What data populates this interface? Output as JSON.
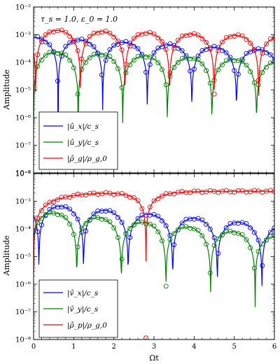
{
  "figure": {
    "xlabel": "Ωt",
    "ylabel_top": "Amplitude",
    "ylabel_bottom": "Amplitude"
  },
  "chart_data": [
    {
      "type": "line",
      "annotation": "τ_s = 1.0, ε_0 = 1.0",
      "xlim": [
        0,
        6
      ],
      "ylim": [
        1e-08,
        0.01
      ],
      "yscale": "log",
      "xticks": [
        "0",
        "1",
        "2",
        "3",
        "4",
        "5",
        "6"
      ],
      "yticks": [
        "10⁻⁸",
        "10⁻⁷",
        "10⁻⁶",
        "10⁻⁵",
        "10⁻⁴",
        "10⁻³",
        "10⁻²"
      ],
      "grid": false,
      "legend_position": "lower-left",
      "markers": "open circles (simulation) over solid lines (analytic)",
      "series": [
        {
          "name": "|û_x|/c_s",
          "color": "#0000ff",
          "amplitude": 0.0008,
          "decay": 0.18,
          "freq": 0.9,
          "phase": 1.414
        },
        {
          "name": "|û_y|/c_s",
          "color": "#008000",
          "amplitude": 0.00025,
          "decay": 0.14,
          "freq": 0.9,
          "phase": 0.0
        },
        {
          "name": "|ρ̂_g|/ρ_g,0",
          "color": "#ff0000",
          "amplitude": 0.0015,
          "decay": 0.09,
          "freq": 0.9,
          "phase": -0.15
        }
      ],
      "x_labels": [
        "",
        "",
        "",
        "",
        "",
        "",
        ""
      ]
    },
    {
      "type": "line",
      "xlim": [
        0,
        6
      ],
      "ylim": [
        1e-08,
        0.01
      ],
      "yscale": "log",
      "xticks": [
        "0",
        "1",
        "2",
        "3",
        "4",
        "5",
        "6"
      ],
      "yticks": [
        "10⁻⁸",
        "10⁻⁷",
        "10⁻⁶",
        "10⁻⁵",
        "10⁻⁴",
        "10⁻³",
        "10⁻²"
      ],
      "grid": false,
      "legend_position": "lower-left",
      "series": [
        {
          "name": "|v̂_x|/c_s",
          "color": "#0000ff",
          "amplitude": 0.0008,
          "decay": 0.3,
          "freq": 0.9,
          "phase": -0.377
        },
        {
          "name": "|v̂_y|/c_s",
          "color": "#008000",
          "amplitude": 0.00045,
          "decay": 0.35,
          "freq": 0.9,
          "phase": 0.1
        },
        {
          "name": "|ρ̂_p|/ρ_g,0",
          "color": "#ff0000",
          "growth_to": 0.0023,
          "growth_rate": 1.2,
          "zero_at": 2.8
        }
      ]
    }
  ]
}
